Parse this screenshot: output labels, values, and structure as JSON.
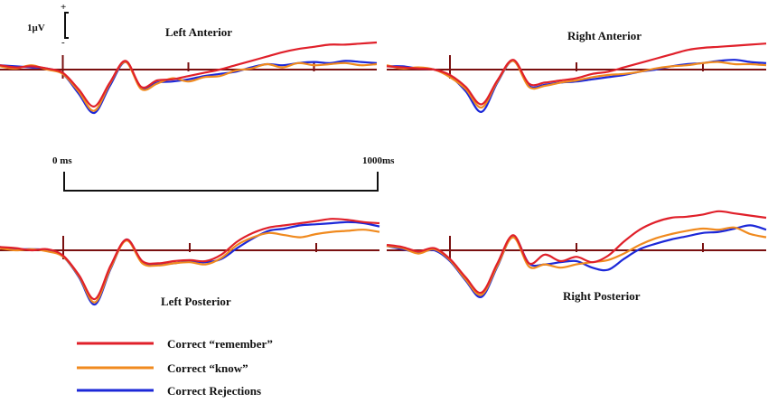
{
  "chart_data": {
    "type": "line",
    "colors": {
      "Correct “remember”": "#e0202a",
      "Correct “know”": "#f08a1e",
      "Correct Rejections": "#1c28d8"
    },
    "axis_color": "#7a1010",
    "scale": {
      "label": "1μV",
      "plus": "+",
      "minus": "-"
    },
    "time_bar": {
      "start_label": "0 ms",
      "end_label": "1000ms"
    },
    "xlim": [
      -200,
      1000
    ],
    "x_ticks": [
      0,
      400,
      800
    ],
    "legend": [
      {
        "name": "Correct “remember”"
      },
      {
        "name": "Correct “know”"
      },
      {
        "name": "Correct Rejections"
      }
    ],
    "x": [
      -200,
      -150,
      -100,
      -50,
      0,
      50,
      100,
      150,
      200,
      250,
      300,
      350,
      400,
      450,
      500,
      550,
      600,
      650,
      700,
      750,
      800,
      850,
      900,
      950,
      1000
    ],
    "panels": [
      {
        "title": "Left Anterior",
        "series": [
          {
            "name": "Correct “remember”",
            "values": [
              0.4,
              0.2,
              0.3,
              0.1,
              -0.3,
              -1.8,
              -3.4,
              -1.2,
              0.8,
              -1.6,
              -1.0,
              -0.9,
              -0.6,
              -0.3,
              0.0,
              0.4,
              0.8,
              1.2,
              1.6,
              1.9,
              2.1,
              2.3,
              2.3,
              2.4,
              2.5
            ]
          },
          {
            "name": "Correct “know”",
            "values": [
              0.3,
              0.1,
              0.4,
              0.0,
              -0.4,
              -2.0,
              -3.8,
              -1.3,
              0.7,
              -1.8,
              -1.3,
              -0.8,
              -1.1,
              -0.7,
              -0.6,
              -0.1,
              0.1,
              0.5,
              0.2,
              0.6,
              0.4,
              0.5,
              0.6,
              0.4,
              0.5
            ]
          },
          {
            "name": "Correct Rejections",
            "values": [
              0.4,
              0.3,
              0.2,
              0.1,
              -0.4,
              -2.2,
              -4.0,
              -1.5,
              0.7,
              -1.7,
              -1.2,
              -1.1,
              -0.9,
              -0.6,
              -0.4,
              -0.2,
              0.2,
              0.5,
              0.4,
              0.6,
              0.7,
              0.6,
              0.8,
              0.7,
              0.6
            ]
          }
        ]
      },
      {
        "title": "Right Anterior",
        "series": [
          {
            "name": "Correct “remember”",
            "values": [
              0.3,
              0.2,
              0.1,
              0.0,
              -0.5,
              -1.6,
              -3.2,
              -1.0,
              0.9,
              -1.3,
              -1.2,
              -1.0,
              -0.8,
              -0.4,
              -0.2,
              0.2,
              0.6,
              1.0,
              1.4,
              1.8,
              2.0,
              2.1,
              2.2,
              2.3,
              2.4
            ]
          },
          {
            "name": "Correct “know”",
            "values": [
              0.4,
              0.1,
              0.2,
              0.0,
              -0.7,
              -1.8,
              -3.5,
              -1.1,
              0.8,
              -1.6,
              -1.5,
              -1.2,
              -1.0,
              -0.7,
              -0.5,
              -0.4,
              -0.2,
              0.1,
              0.3,
              0.4,
              0.6,
              0.7,
              0.5,
              0.5,
              0.4
            ]
          },
          {
            "name": "Correct Rejections",
            "values": [
              0.3,
              0.3,
              0.1,
              0.0,
              -0.6,
              -2.0,
              -3.9,
              -1.2,
              0.8,
              -1.5,
              -1.4,
              -1.2,
              -1.1,
              -0.9,
              -0.7,
              -0.5,
              -0.2,
              0.0,
              0.3,
              0.5,
              0.6,
              0.8,
              0.9,
              0.7,
              0.6
            ]
          }
        ]
      },
      {
        "title": "Left Posterior",
        "series": [
          {
            "name": "Correct “remember”",
            "values": [
              0.3,
              0.2,
              0.0,
              0.1,
              -0.5,
              -2.3,
              -4.5,
              -1.4,
              1.0,
              -1.0,
              -1.2,
              -1.0,
              -0.9,
              -1.0,
              -0.4,
              0.8,
              1.6,
              2.1,
              2.3,
              2.5,
              2.7,
              2.9,
              2.8,
              2.6,
              2.5
            ]
          },
          {
            "name": "Correct “know”",
            "values": [
              0.2,
              0.0,
              0.1,
              -0.1,
              -0.6,
              -2.4,
              -4.8,
              -1.6,
              0.9,
              -1.2,
              -1.4,
              -1.2,
              -1.1,
              -1.3,
              -0.7,
              0.5,
              1.2,
              1.6,
              1.4,
              1.2,
              1.5,
              1.7,
              1.8,
              1.9,
              1.7
            ]
          },
          {
            "name": "Correct Rejections",
            "values": [
              0.3,
              0.1,
              0.1,
              0.0,
              -0.6,
              -2.5,
              -5.0,
              -1.7,
              1.0,
              -1.1,
              -1.3,
              -1.2,
              -1.0,
              -1.1,
              -0.8,
              0.2,
              1.1,
              1.8,
              2.0,
              2.3,
              2.4,
              2.5,
              2.6,
              2.5,
              2.2
            ]
          }
        ]
      },
      {
        "title": "Right Posterior",
        "series": [
          {
            "name": "Correct “remember”",
            "values": [
              0.5,
              0.3,
              -0.1,
              0.2,
              -0.8,
              -2.5,
              -3.9,
              -1.2,
              1.4,
              -1.2,
              -0.4,
              -1.0,
              -0.6,
              -1.1,
              -0.5,
              0.8,
              1.9,
              2.6,
              3.0,
              3.1,
              3.3,
              3.6,
              3.4,
              3.2,
              3.0
            ]
          },
          {
            "name": "Correct “know”",
            "values": [
              0.4,
              0.2,
              -0.3,
              0.1,
              -0.9,
              -2.7,
              -4.1,
              -1.4,
              1.2,
              -1.5,
              -1.3,
              -1.6,
              -1.3,
              -1.1,
              -0.9,
              -0.3,
              0.5,
              1.1,
              1.5,
              1.8,
              2.0,
              1.9,
              2.1,
              1.5,
              1.2
            ]
          },
          {
            "name": "Correct Rejections",
            "values": [
              0.4,
              0.1,
              -0.2,
              0.0,
              -1.0,
              -2.8,
              -4.3,
              -1.5,
              1.3,
              -1.2,
              -1.3,
              -1.1,
              -1.0,
              -1.6,
              -1.8,
              -0.8,
              0.1,
              0.6,
              1.0,
              1.3,
              1.6,
              1.7,
              2.0,
              2.3,
              1.9
            ]
          }
        ]
      }
    ]
  }
}
